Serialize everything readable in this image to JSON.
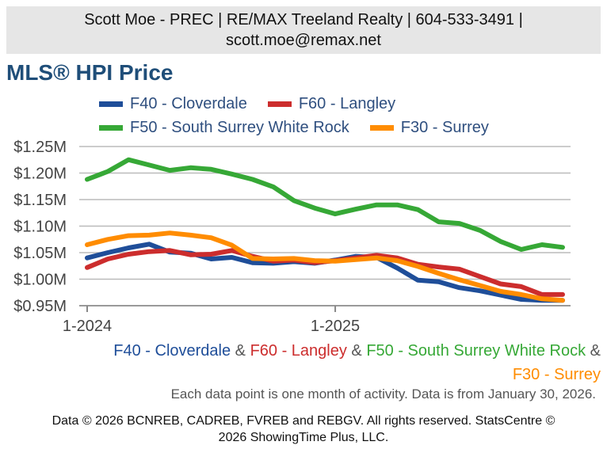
{
  "header": {
    "line1": "Scott Moe - PREC | RE/MAX Treeland Realty | 604-533-3491 |",
    "line2": "scott.moe@remax.net"
  },
  "chart_data": {
    "type": "line",
    "title": "MLS® HPI Price",
    "xlabel": "",
    "ylabel": "",
    "x": [
      "2024-01",
      "2024-02",
      "2024-03",
      "2024-04",
      "2024-05",
      "2024-06",
      "2024-07",
      "2024-08",
      "2024-09",
      "2024-10",
      "2024-11",
      "2024-12",
      "2025-01",
      "2025-02",
      "2025-03",
      "2025-04",
      "2025-05",
      "2025-06",
      "2025-07",
      "2025-08",
      "2025-09",
      "2025-10",
      "2025-11",
      "2025-12"
    ],
    "xticks": [
      "1-2024",
      "1-2025"
    ],
    "ylim": [
      0.95,
      1.25
    ],
    "yticks": [
      "$1.25M",
      "$1.20M",
      "$1.15M",
      "$1.10M",
      "$1.05M",
      "$1.00M",
      "$0.95M"
    ],
    "ytick_values": [
      1.25,
      1.2,
      1.15,
      1.1,
      1.05,
      1.0,
      0.95
    ],
    "series": [
      {
        "name": "F40 - Cloverdale",
        "color": "#1f4e99",
        "values": [
          1.04,
          1.05,
          1.059,
          1.066,
          1.051,
          1.049,
          1.038,
          1.041,
          1.031,
          1.03,
          1.033,
          1.03,
          1.036,
          1.043,
          1.041,
          1.021,
          0.998,
          0.995,
          0.984,
          0.978,
          0.97,
          0.962,
          0.96,
          0.96
        ]
      },
      {
        "name": "F60 - Langley",
        "color": "#cc2d2d",
        "values": [
          1.022,
          1.038,
          1.047,
          1.052,
          1.054,
          1.046,
          1.047,
          1.054,
          1.043,
          1.034,
          1.036,
          1.031,
          1.035,
          1.04,
          1.045,
          1.04,
          1.028,
          1.023,
          1.019,
          1.005,
          0.991,
          0.986,
          0.971,
          0.971
        ]
      },
      {
        "name": "F50 - South Surrey White Rock",
        "color": "#36a836",
        "values": [
          1.188,
          1.203,
          1.225,
          1.215,
          1.205,
          1.21,
          1.207,
          1.198,
          1.188,
          1.174,
          1.148,
          1.134,
          1.123,
          1.132,
          1.14,
          1.14,
          1.131,
          1.108,
          1.105,
          1.092,
          1.071,
          1.056,
          1.065,
          1.06
        ]
      },
      {
        "name": "F30 - Surrey",
        "color": "#ff8c00",
        "values": [
          1.065,
          1.075,
          1.082,
          1.083,
          1.087,
          1.083,
          1.078,
          1.064,
          1.039,
          1.038,
          1.039,
          1.035,
          1.034,
          1.037,
          1.04,
          1.035,
          1.024,
          1.011,
          0.999,
          0.988,
          0.977,
          0.971,
          0.963,
          0.96
        ]
      }
    ]
  },
  "legend_rows": [
    [
      {
        "label": "F40 - Cloverdale",
        "color": "#1f4e99"
      },
      {
        "label": "F60 - Langley",
        "color": "#cc2d2d"
      }
    ],
    [
      {
        "label": "F50 - South Surrey White Rock",
        "color": "#36a836"
      },
      {
        "label": "F30 - Surrey",
        "color": "#ff8c00"
      }
    ]
  ],
  "subtitle": {
    "parts": [
      {
        "text": "F40 - Cloverdale",
        "color": "#1f4e99"
      },
      {
        "text": " & ",
        "color": "#555555"
      },
      {
        "text": "F60 - Langley",
        "color": "#cc2d2d"
      },
      {
        "text": " & ",
        "color": "#555555"
      },
      {
        "text": "F50 - South Surrey White Rock",
        "color": "#36a836"
      },
      {
        "text": " & ",
        "color": "#555555"
      },
      {
        "text": "F30 - Surrey",
        "color": "#ff8c00"
      }
    ]
  },
  "note": "Each data point is one month of activity. Data is from January 30, 2026.",
  "footer": {
    "line1": "Data © 2026 BCNREB, CADREB, FVREB and REBGV. All rights reserved. StatsCentre ©",
    "line2": "2026 ShowingTime Plus, LLC."
  }
}
